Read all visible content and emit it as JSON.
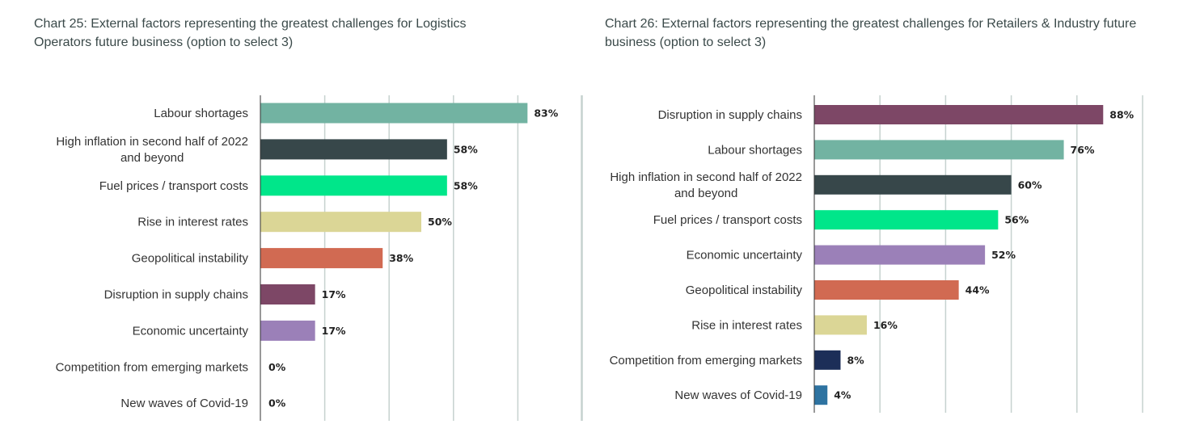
{
  "chart_data": [
    {
      "type": "bar",
      "orientation": "horizontal",
      "title": "Chart 25: External factors representing the greatest challenges for Logistics Operators future business (option to select 3)",
      "xlim": [
        0,
        100
      ],
      "grid": true,
      "categories": [
        [
          "Labour shortages"
        ],
        [
          "High inflation in second half of 2022",
          "and beyond"
        ],
        [
          "Fuel prices / transport costs"
        ],
        [
          "Rise in interest rates"
        ],
        [
          "Geopolitical instability"
        ],
        [
          "Disruption in supply chains"
        ],
        [
          "Economic uncertainty"
        ],
        [
          "Competition from emerging markets"
        ],
        [
          "New waves of Covid-19"
        ]
      ],
      "values": [
        83,
        58,
        58,
        50,
        38,
        17,
        17,
        0,
        0
      ],
      "value_labels": [
        "83%",
        "58%",
        "58%",
        "50%",
        "38%",
        "17%",
        "17%",
        "0%",
        "0%"
      ],
      "colors": [
        "#72b3a2",
        "#37474a",
        "#00e68a",
        "#dbd696",
        "#d16a52",
        "#7d4766",
        "#9b80b8",
        "#72b3a2",
        "#72b3a2"
      ]
    },
    {
      "type": "bar",
      "orientation": "horizontal",
      "title": "Chart 26: External factors representing the greatest challenges for Retailers & Industry future business (option to select 3)",
      "xlim": [
        0,
        100
      ],
      "grid": true,
      "categories": [
        [
          "Disruption in supply chains"
        ],
        [
          "Labour shortages"
        ],
        [
          "High inflation in second half of 2022",
          "and beyond"
        ],
        [
          "Fuel prices / transport costs"
        ],
        [
          "Economic uncertainty"
        ],
        [
          "Geopolitical instability"
        ],
        [
          "Rise in interest rates"
        ],
        [
          "Competition from emerging markets"
        ],
        [
          "New waves of Covid-19"
        ]
      ],
      "values": [
        88,
        76,
        60,
        56,
        52,
        44,
        16,
        8,
        4
      ],
      "value_labels": [
        "88%",
        "76%",
        "60%",
        "56%",
        "52%",
        "44%",
        "16%",
        "8%",
        "4%"
      ],
      "colors": [
        "#7d4766",
        "#72b3a2",
        "#37474a",
        "#00e68a",
        "#9b80b8",
        "#d16a52",
        "#dbd696",
        "#1c2e58",
        "#2e73a1"
      ]
    }
  ],
  "divider_color": "#c6d2cf",
  "grid_color": "#c6d2cf"
}
